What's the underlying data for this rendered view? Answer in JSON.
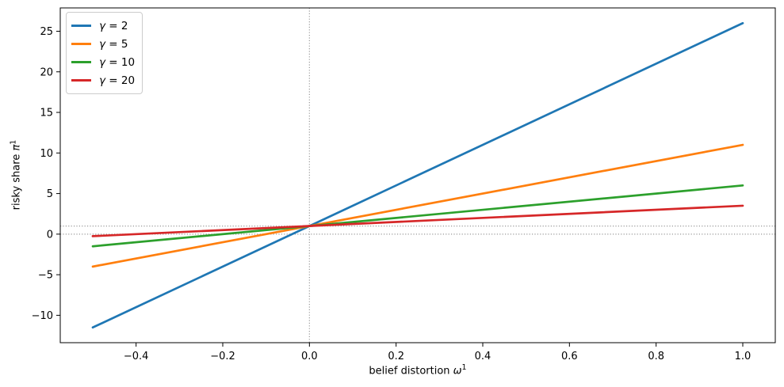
{
  "figure": {
    "background": "#ffffff",
    "frame_color": "#000000"
  },
  "chart_data": {
    "type": "line",
    "title": "",
    "xlabel": "belief distortion ω¹",
    "ylabel": "risky share π¹",
    "xlabel_parts": {
      "text": "belief distortion ",
      "symbol": "ω",
      "sup": "1"
    },
    "ylabel_parts": {
      "text": "risky share ",
      "symbol": "π",
      "sup": "1"
    },
    "xlim": [
      -0.575,
      1.075
    ],
    "ylim": [
      -13.375,
      27.875
    ],
    "grid": false,
    "x_ticks": [
      {
        "v": -0.4,
        "label": "−0.4"
      },
      {
        "v": -0.2,
        "label": "−0.2"
      },
      {
        "v": 0.0,
        "label": "0.0"
      },
      {
        "v": 0.2,
        "label": "0.2"
      },
      {
        "v": 0.4,
        "label": "0.4"
      },
      {
        "v": 0.6,
        "label": "0.6"
      },
      {
        "v": 0.8,
        "label": "0.8"
      },
      {
        "v": 1.0,
        "label": "1.0"
      }
    ],
    "y_ticks": [
      {
        "v": -10,
        "label": "−10"
      },
      {
        "v": -5,
        "label": "−5"
      },
      {
        "v": 0,
        "label": "0"
      },
      {
        "v": 5,
        "label": "5"
      },
      {
        "v": 10,
        "label": "10"
      },
      {
        "v": 15,
        "label": "15"
      },
      {
        "v": 20,
        "label": "20"
      },
      {
        "v": 25,
        "label": "25"
      }
    ],
    "series": [
      {
        "name": "γ = 2",
        "gamma": 2,
        "color": "#1f77b4",
        "slope": 25.0,
        "intercept": 1.0,
        "points": [
          [
            -0.5,
            -11.5
          ],
          [
            1.0,
            26.0
          ]
        ],
        "label": {
          "symbol": "γ",
          "rest": " = 2"
        }
      },
      {
        "name": "γ = 5",
        "gamma": 5,
        "color": "#ff7f0e",
        "slope": 10.0,
        "intercept": 1.0,
        "points": [
          [
            -0.5,
            -4.0
          ],
          [
            1.0,
            11.0
          ]
        ],
        "label": {
          "symbol": "γ",
          "rest": " = 5"
        }
      },
      {
        "name": "γ = 10",
        "gamma": 10,
        "color": "#2ca02c",
        "slope": 5.0,
        "intercept": 1.0,
        "points": [
          [
            -0.5,
            -1.5
          ],
          [
            1.0,
            6.0
          ]
        ],
        "label": {
          "symbol": "γ",
          "rest": " = 10"
        }
      },
      {
        "name": "γ = 20",
        "gamma": 20,
        "color": "#d62728",
        "slope": 2.5,
        "intercept": 1.0,
        "points": [
          [
            -0.5,
            -0.25
          ],
          [
            1.0,
            3.5
          ]
        ],
        "label": {
          "symbol": "γ",
          "rest": " = 20"
        }
      }
    ],
    "reference_lines": {
      "horizontal": [
        0,
        1
      ],
      "vertical": [
        0
      ],
      "color": "#999999",
      "style": "dotted"
    },
    "legend": {
      "position": "upper left"
    }
  }
}
